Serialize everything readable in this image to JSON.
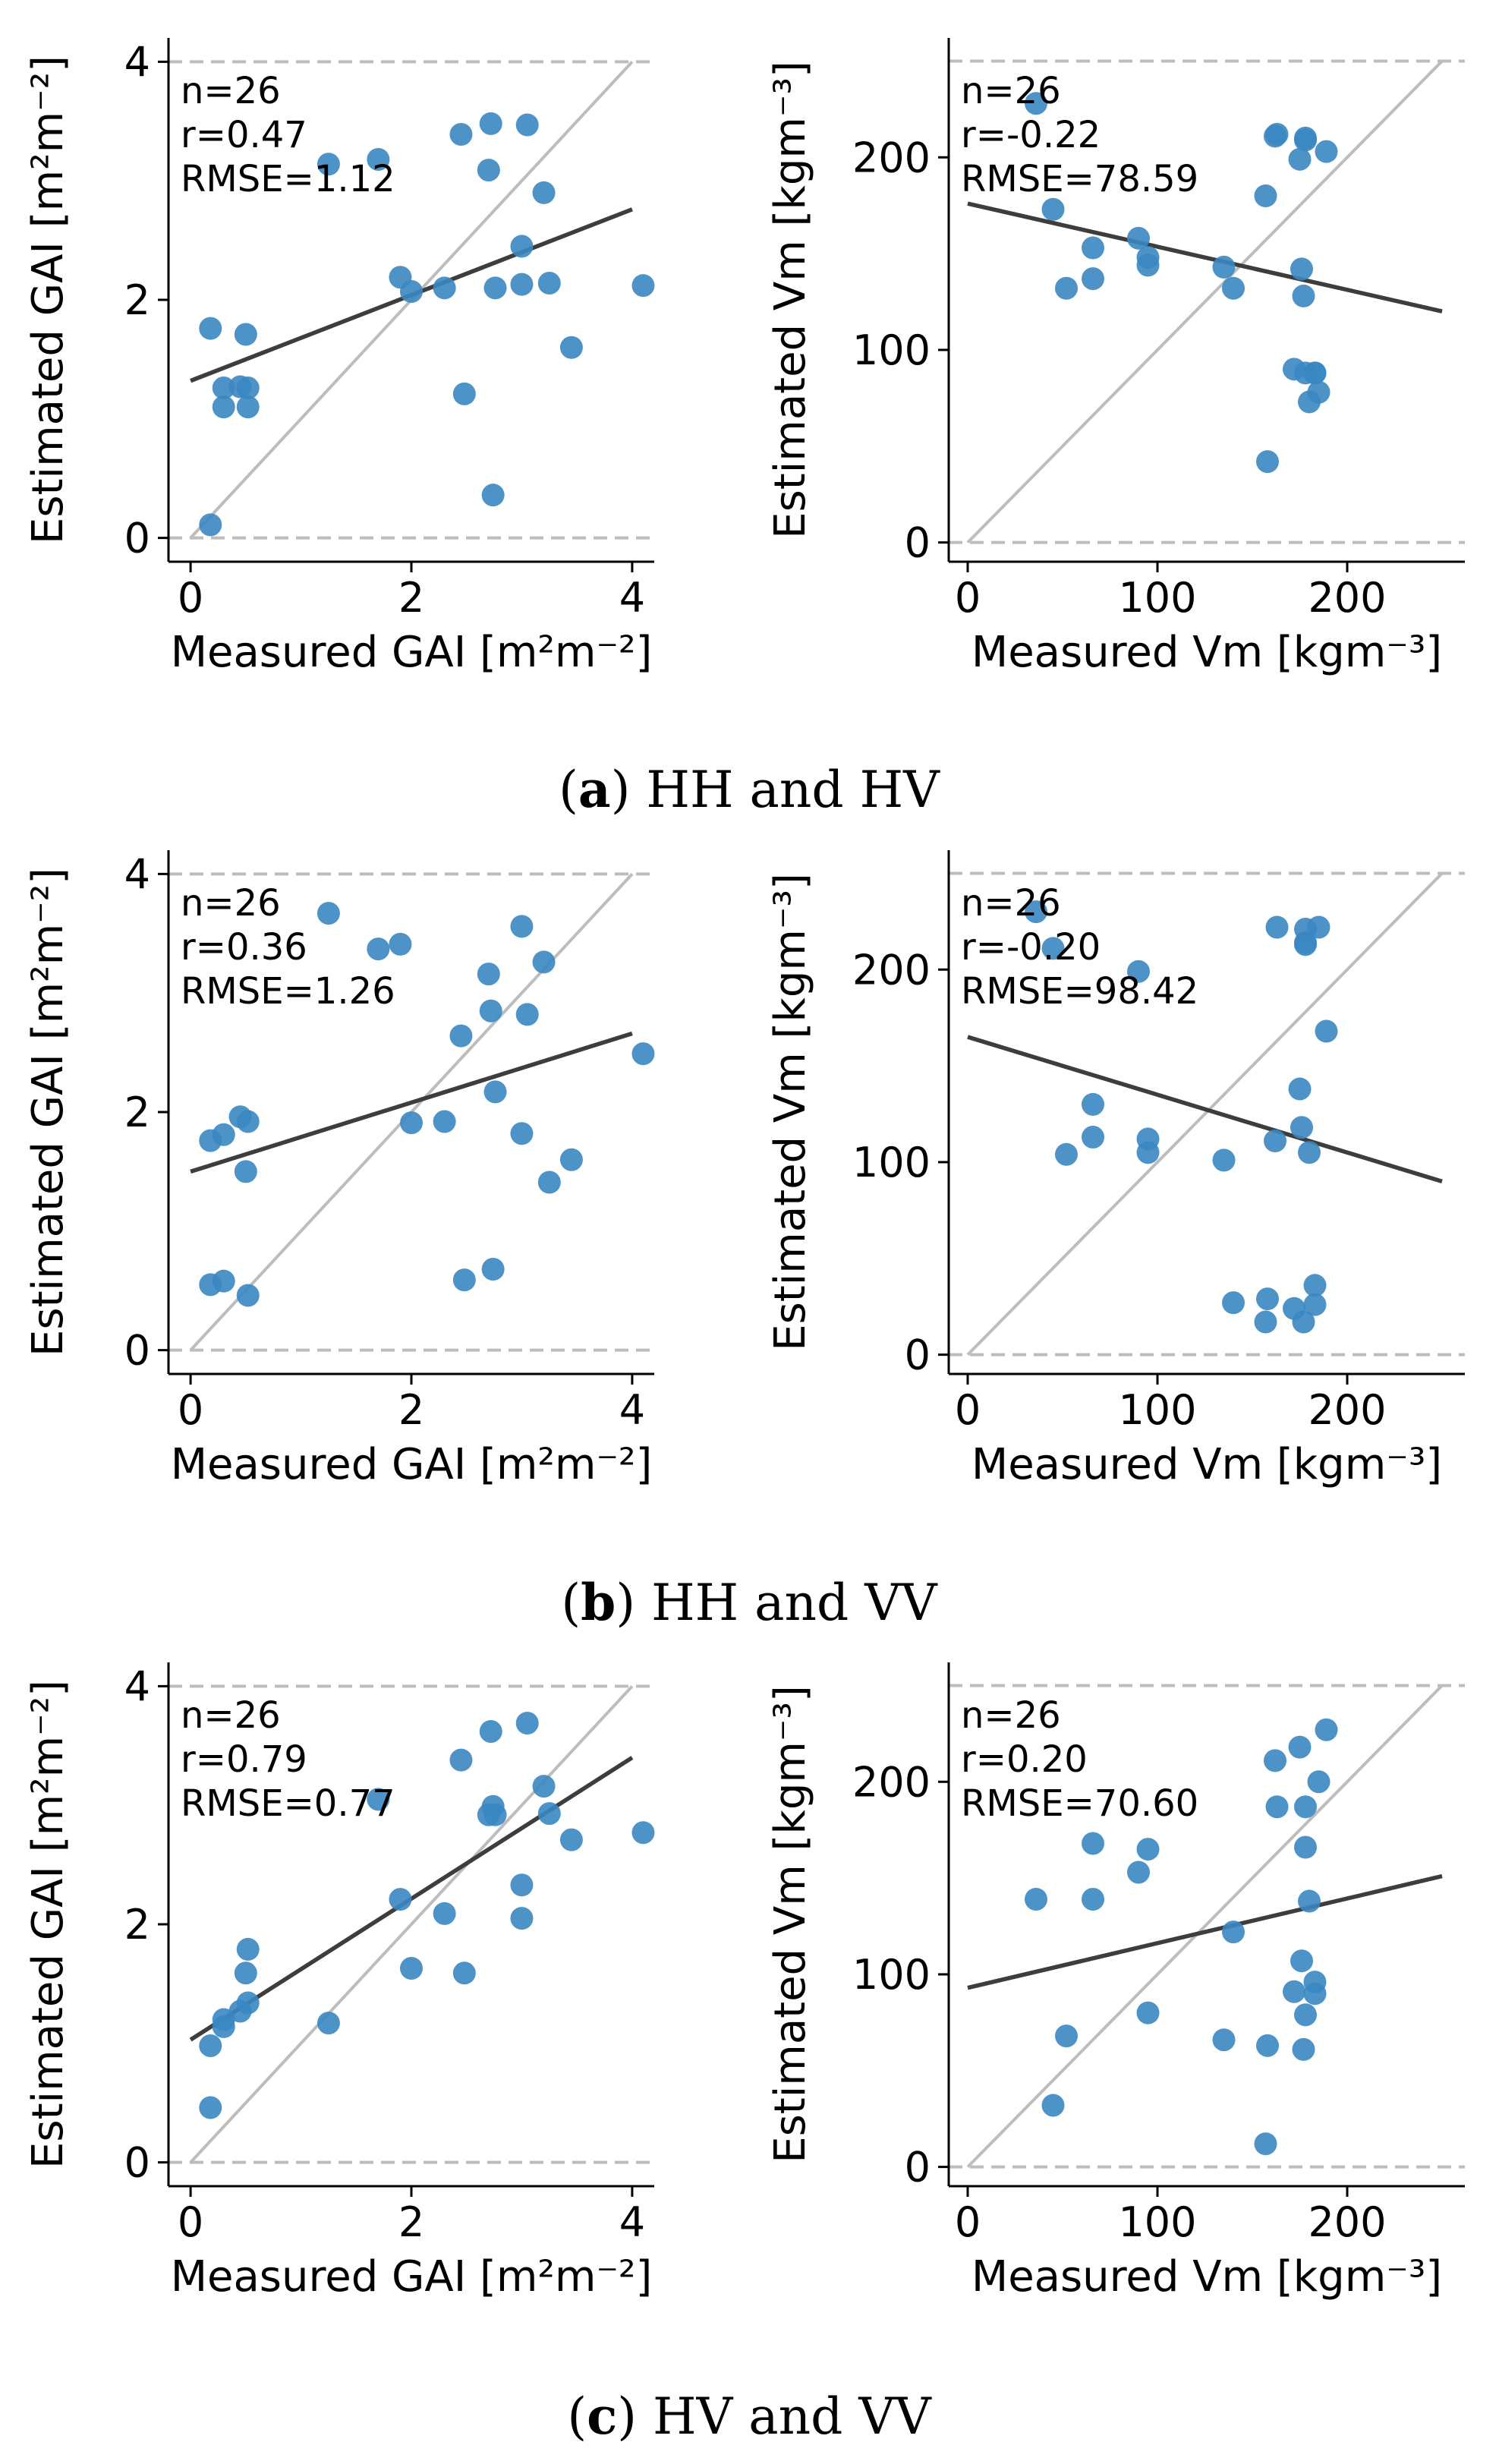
{
  "figure": {
    "captions": [
      {
        "letter": "a",
        "text": "HH and HV"
      },
      {
        "letter": "b",
        "text": "HH and VV"
      },
      {
        "letter": "c",
        "text": "HV and VV"
      }
    ]
  },
  "colors": {
    "points": "#3a87c2",
    "fit_line": "#3d3d3d",
    "identity_line": "#bdbdbd",
    "limit_line": "#bdbdbd",
    "axis": "#000000",
    "text": "#000000"
  },
  "chart_data": [
    {
      "id": "a-gai",
      "type": "scatter",
      "xlabel": "Measured GAI [m²m⁻²]",
      "ylabel": "Estimated GAI [m²m⁻²]",
      "xlim": [
        -0.2,
        4.2
      ],
      "ylim": [
        -0.2,
        4.2
      ],
      "xticks": [
        0,
        2,
        4
      ],
      "yticks": [
        0,
        2,
        4
      ],
      "limit_lines": [
        0,
        4
      ],
      "identity_range": [
        0,
        4
      ],
      "fit": {
        "x": [
          0,
          4
        ],
        "y": [
          1.32,
          2.76
        ]
      },
      "stats": [
        "n=26",
        "r=0.47",
        "RMSE=1.12"
      ],
      "points": {
        "x": [
          0.18,
          0.18,
          0.3,
          0.3,
          0.45,
          0.5,
          0.52,
          0.52,
          1.25,
          1.7,
          1.9,
          2.0,
          2.3,
          2.45,
          2.48,
          2.7,
          2.72,
          2.74,
          2.76,
          3.0,
          3.0,
          3.05,
          3.2,
          3.25,
          3.45,
          4.1
        ],
        "y": [
          1.76,
          0.11,
          1.1,
          1.26,
          1.27,
          1.71,
          1.26,
          1.1,
          3.14,
          3.18,
          2.19,
          2.07,
          2.1,
          3.39,
          1.21,
          3.09,
          3.48,
          0.36,
          2.1,
          2.13,
          2.45,
          3.47,
          2.9,
          2.14,
          1.6,
          2.12
        ]
      }
    },
    {
      "id": "a-vm",
      "type": "scatter",
      "xlabel": "Measured Vm [kgm⁻³]",
      "ylabel": "Estimated Vm [kgm⁻³]",
      "xlim": [
        -10,
        262
      ],
      "ylim": [
        -10,
        262
      ],
      "xticks": [
        0,
        100,
        200
      ],
      "yticks": [
        0,
        100,
        200
      ],
      "limit_lines": [
        0,
        250
      ],
      "identity_range": [
        0,
        250
      ],
      "fit": {
        "x": [
          0,
          250
        ],
        "y": [
          176,
          120
        ]
      },
      "stats": [
        "n=26",
        "r=-0.22",
        "RMSE=78.59"
      ],
      "points": {
        "x": [
          36,
          45,
          52,
          66,
          66,
          90,
          95,
          95,
          135,
          140,
          157,
          158,
          162,
          163,
          172,
          175,
          176,
          177,
          178,
          178,
          178,
          180,
          183,
          183,
          185,
          189
        ],
        "y": [
          228,
          173,
          132,
          153,
          137,
          158,
          148,
          144,
          143,
          132,
          180,
          42,
          211,
          212,
          90,
          199,
          142,
          128,
          209,
          210,
          88,
          73,
          88,
          88,
          78,
          203
        ]
      }
    },
    {
      "id": "b-gai",
      "type": "scatter",
      "xlabel": "Measured GAI [m²m⁻²]",
      "ylabel": "Estimated GAI [m²m⁻²]",
      "xlim": [
        -0.2,
        4.2
      ],
      "ylim": [
        -0.2,
        4.2
      ],
      "xticks": [
        0,
        2,
        4
      ],
      "yticks": [
        0,
        2,
        4
      ],
      "limit_lines": [
        0,
        4
      ],
      "identity_range": [
        0,
        4
      ],
      "fit": {
        "x": [
          0,
          4
        ],
        "y": [
          1.5,
          2.66
        ]
      },
      "stats": [
        "n=26",
        "r=0.36",
        "RMSE=1.26"
      ],
      "points": {
        "x": [
          0.18,
          0.18,
          0.3,
          0.3,
          0.45,
          0.5,
          0.52,
          0.52,
          1.25,
          1.7,
          1.9,
          2.0,
          2.3,
          2.45,
          2.48,
          2.7,
          2.72,
          2.74,
          2.76,
          3.0,
          3.0,
          3.05,
          3.2,
          3.25,
          3.45,
          4.1
        ],
        "y": [
          1.76,
          0.55,
          1.81,
          0.58,
          1.96,
          1.5,
          1.92,
          0.46,
          3.67,
          3.37,
          3.41,
          1.91,
          1.92,
          2.64,
          0.59,
          3.16,
          2.85,
          0.68,
          2.17,
          1.82,
          3.56,
          2.82,
          3.26,
          1.41,
          1.6,
          2.49
        ]
      }
    },
    {
      "id": "b-vm",
      "type": "scatter",
      "xlabel": "Measured Vm [kgm⁻³]",
      "ylabel": "Estimated Vm [kgm⁻³]",
      "xlim": [
        -10,
        262
      ],
      "ylim": [
        -10,
        262
      ],
      "xticks": [
        0,
        100,
        200
      ],
      "yticks": [
        0,
        100,
        200
      ],
      "limit_lines": [
        0,
        250
      ],
      "identity_range": [
        0,
        250
      ],
      "fit": {
        "x": [
          0,
          250
        ],
        "y": [
          165,
          90
        ]
      },
      "stats": [
        "n=26",
        "r=-0.20",
        "RMSE=98.42"
      ],
      "points": {
        "x": [
          36,
          45,
          52,
          66,
          66,
          90,
          95,
          95,
          135,
          140,
          157,
          158,
          162,
          163,
          172,
          175,
          176,
          177,
          178,
          178,
          178,
          180,
          183,
          183,
          185,
          189
        ],
        "y": [
          230,
          211,
          104,
          130,
          113,
          199,
          112,
          105,
          101,
          27,
          17,
          29,
          111,
          222,
          24,
          138,
          118,
          17,
          213,
          214,
          221,
          105,
          36,
          26,
          222,
          168
        ]
      }
    },
    {
      "id": "c-gai",
      "type": "scatter",
      "xlabel": "Measured GAI [m²m⁻²]",
      "ylabel": "Estimated GAI [m²m⁻²]",
      "xlim": [
        -0.2,
        4.2
      ],
      "ylim": [
        -0.2,
        4.2
      ],
      "xticks": [
        0,
        2,
        4
      ],
      "yticks": [
        0,
        2,
        4
      ],
      "limit_lines": [
        0,
        4
      ],
      "identity_range": [
        0,
        4
      ],
      "fit": {
        "x": [
          0,
          4
        ],
        "y": [
          1.03,
          3.4
        ]
      },
      "stats": [
        "n=26",
        "r=0.79",
        "RMSE=0.77"
      ],
      "points": {
        "x": [
          0.18,
          0.18,
          0.3,
          0.3,
          0.45,
          0.5,
          0.52,
          0.52,
          1.25,
          1.7,
          1.9,
          2.0,
          2.3,
          2.45,
          2.48,
          2.7,
          2.72,
          2.74,
          2.76,
          3.0,
          3.0,
          3.05,
          3.2,
          3.25,
          3.45,
          4.1
        ],
        "y": [
          0.98,
          0.46,
          1.14,
          1.2,
          1.27,
          1.59,
          1.34,
          1.79,
          1.17,
          3.05,
          2.21,
          1.63,
          2.09,
          3.38,
          1.59,
          2.92,
          3.62,
          2.99,
          2.92,
          2.05,
          2.33,
          3.69,
          3.16,
          2.93,
          2.71,
          2.77
        ]
      }
    },
    {
      "id": "c-vm",
      "type": "scatter",
      "xlabel": "Measured Vm [kgm⁻³]",
      "ylabel": "Estimated Vm [kgm⁻³]",
      "xlim": [
        -10,
        262
      ],
      "ylim": [
        -10,
        262
      ],
      "xticks": [
        0,
        100,
        200
      ],
      "yticks": [
        0,
        100,
        200
      ],
      "limit_lines": [
        0,
        250
      ],
      "identity_range": [
        0,
        250
      ],
      "fit": {
        "x": [
          0,
          250
        ],
        "y": [
          93,
          151
        ]
      },
      "stats": [
        "n=26",
        "r=0.20",
        "RMSE=70.60"
      ],
      "points": {
        "x": [
          36,
          45,
          52,
          66,
          66,
          90,
          95,
          95,
          135,
          140,
          157,
          158,
          162,
          163,
          172,
          175,
          176,
          177,
          178,
          178,
          178,
          180,
          183,
          183,
          185,
          189
        ],
        "y": [
          139,
          32,
          68,
          168,
          139,
          153,
          165,
          80,
          66,
          122,
          12,
          63,
          211,
          187,
          91,
          218,
          107,
          61,
          166,
          187,
          79,
          138,
          90,
          96,
          200,
          227
        ]
      }
    }
  ]
}
